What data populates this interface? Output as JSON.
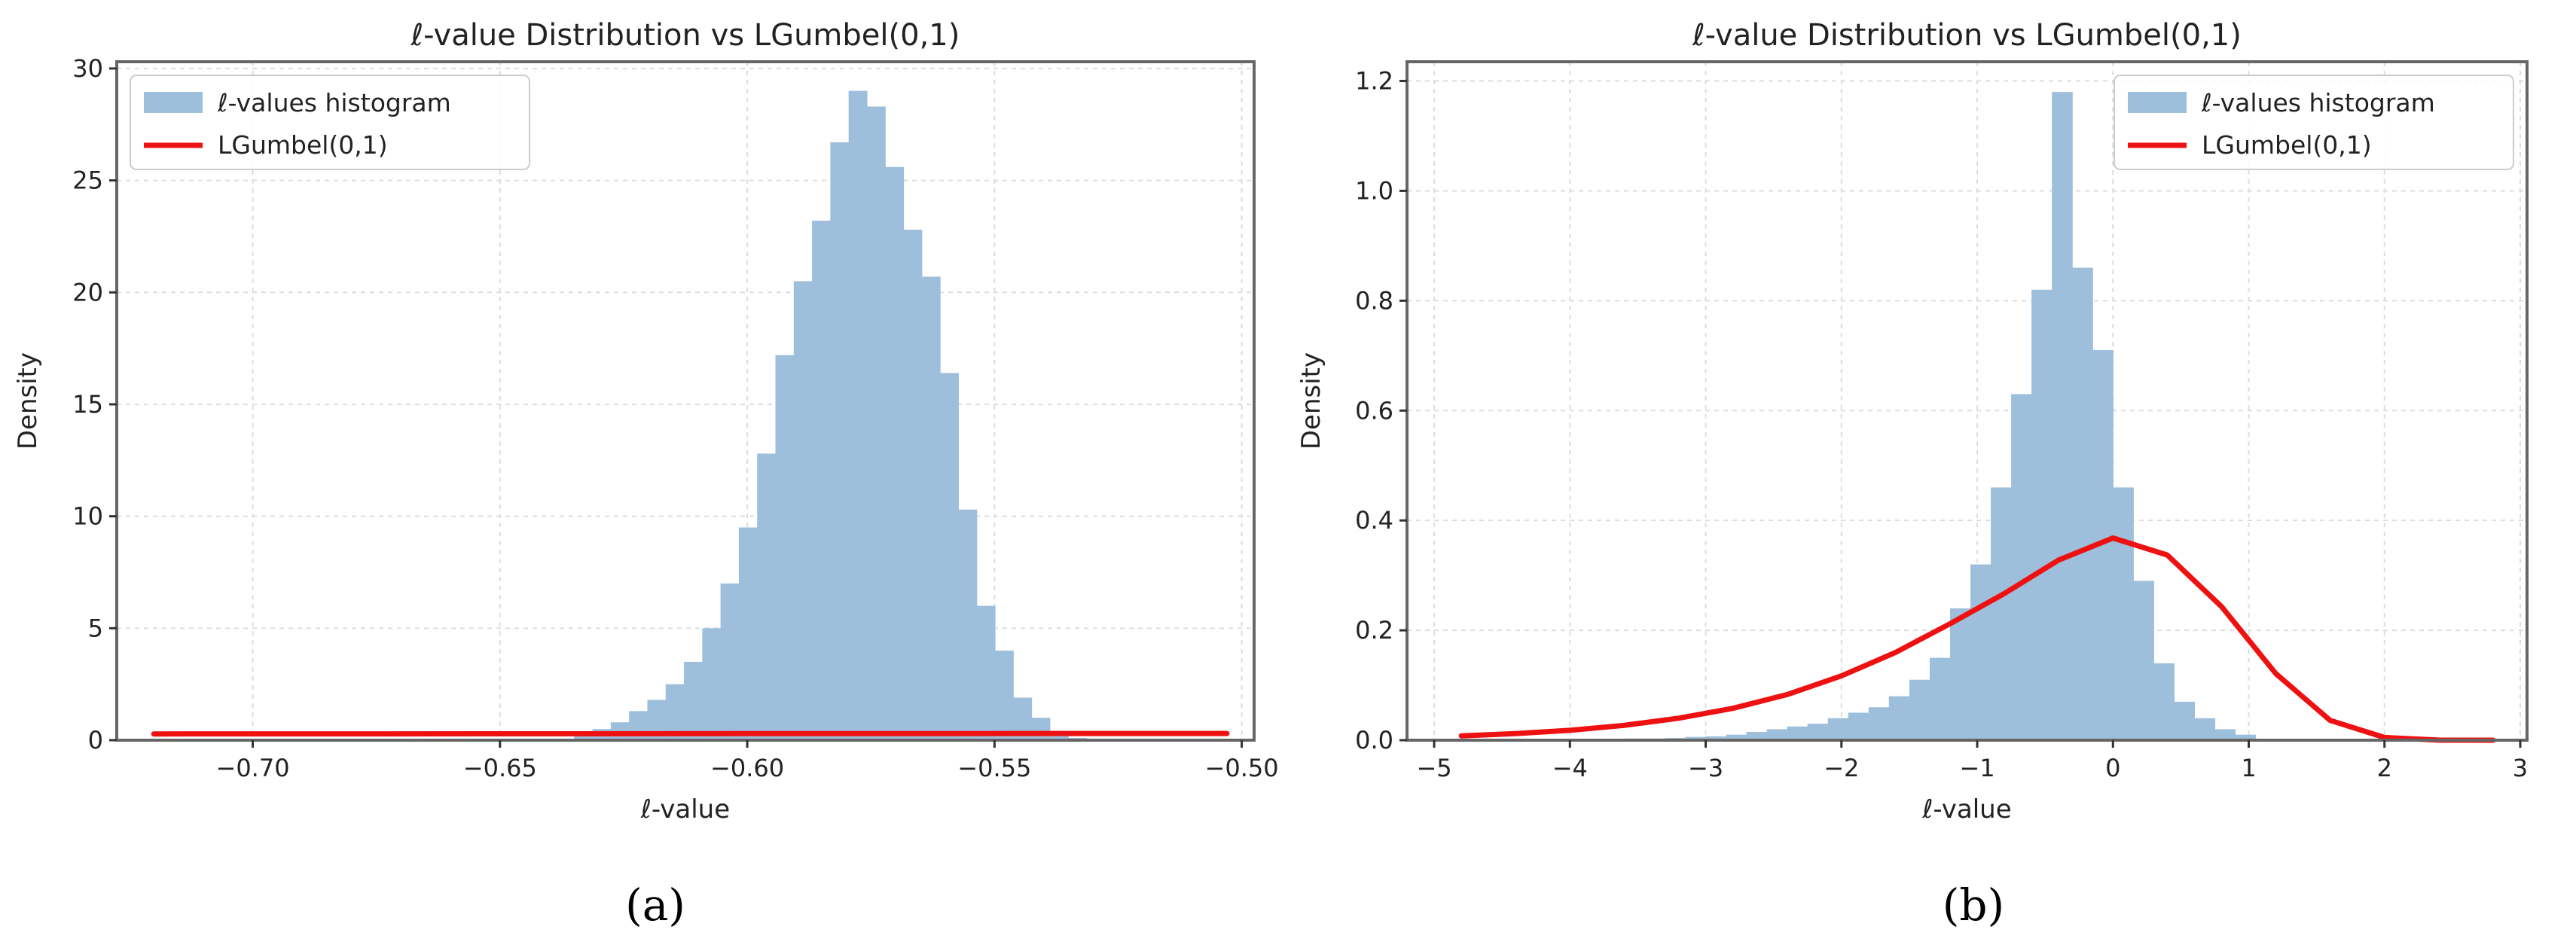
{
  "colors": {
    "hist": "#9ebfdb",
    "curve": "#ee1111",
    "frame": "#666666",
    "grid": "#dddddd"
  },
  "chart_data": [
    {
      "type": "histogram+line",
      "panel_label": "(a)",
      "title": "ℓ-value Distribution vs LGumbel(0,1)",
      "xlabel": "ℓ-value",
      "ylabel": "Density",
      "xlim": [
        -0.7275,
        -0.4975
      ],
      "ylim": [
        0,
        30.3
      ],
      "xticks": [
        -0.7,
        -0.65,
        -0.6,
        -0.55,
        -0.5
      ],
      "xtick_labels": [
        "−0.70",
        "−0.65",
        "−0.60",
        "−0.55",
        "−0.50"
      ],
      "yticks": [
        0,
        5,
        10,
        15,
        20,
        25,
        30
      ],
      "ytick_labels": [
        "0",
        "5",
        "10",
        "15",
        "20",
        "25",
        "30"
      ],
      "grid": true,
      "legend_position": "top-left",
      "series": [
        {
          "name": "ℓ-values histogram",
          "type": "histogram",
          "bin_edges": [
            -0.635,
            -0.6313,
            -0.6276,
            -0.6239,
            -0.6202,
            -0.6165,
            -0.6128,
            -0.6091,
            -0.6054,
            -0.6017,
            -0.598,
            -0.5943,
            -0.5906,
            -0.5869,
            -0.5832,
            -0.5795,
            -0.5758,
            -0.5721,
            -0.5684,
            -0.5647,
            -0.561,
            -0.5573,
            -0.5536,
            -0.5499,
            -0.5462,
            -0.5425,
            -0.5388,
            -0.5351,
            -0.5314
          ],
          "values": [
            0.2,
            0.5,
            0.8,
            1.3,
            1.8,
            2.5,
            3.5,
            5.0,
            7.0,
            9.5,
            12.8,
            17.2,
            20.5,
            23.2,
            26.7,
            29.0,
            28.3,
            25.6,
            22.8,
            20.7,
            16.4,
            10.3,
            6.0,
            4.0,
            1.9,
            1.0,
            0.3,
            0.1
          ]
        },
        {
          "name": "LGumbel(0,1)",
          "type": "line",
          "x": [
            -0.72,
            -0.68,
            -0.64,
            -0.6,
            -0.56,
            -0.52,
            -0.503
          ],
          "y": [
            0.279,
            0.283,
            0.287,
            0.291,
            0.295,
            0.298,
            0.3
          ]
        }
      ]
    },
    {
      "type": "histogram+line",
      "panel_label": "(b)",
      "title": "ℓ-value Distribution vs LGumbel(0,1)",
      "xlabel": "ℓ-value",
      "ylabel": "Density",
      "xlim": [
        -5.2,
        3.05
      ],
      "ylim": [
        0,
        1.235
      ],
      "xticks": [
        -5,
        -4,
        -3,
        -2,
        -1,
        0,
        1,
        2,
        3
      ],
      "xtick_labels": [
        "−5",
        "−4",
        "−3",
        "−2",
        "−1",
        "0",
        "1",
        "2",
        "3"
      ],
      "yticks": [
        0.0,
        0.2,
        0.4,
        0.6,
        0.8,
        1.0,
        1.2
      ],
      "ytick_labels": [
        "0.0",
        "0.2",
        "0.4",
        "0.6",
        "0.8",
        "1.0",
        "1.2"
      ],
      "grid": true,
      "legend_position": "top-right",
      "series": [
        {
          "name": "ℓ-values histogram",
          "type": "histogram",
          "bin_edges": [
            -4.8,
            -4.65,
            -4.5,
            -4.35,
            -4.2,
            -4.05,
            -3.9,
            -3.75,
            -3.6,
            -3.45,
            -3.3,
            -3.15,
            -3.0,
            -2.85,
            -2.7,
            -2.55,
            -2.4,
            -2.25,
            -2.1,
            -1.95,
            -1.8,
            -1.65,
            -1.5,
            -1.35,
            -1.2,
            -1.05,
            -0.9,
            -0.75,
            -0.6,
            -0.45,
            -0.3,
            -0.15,
            0.0,
            0.15,
            0.3,
            0.45,
            0.6,
            0.75,
            0.9,
            1.05
          ],
          "values": [
            0.001,
            0.001,
            0.001,
            0.001,
            0.001,
            0.002,
            0.002,
            0.002,
            0.003,
            0.003,
            0.004,
            0.006,
            0.007,
            0.01,
            0.015,
            0.02,
            0.025,
            0.03,
            0.04,
            0.05,
            0.06,
            0.08,
            0.11,
            0.15,
            0.24,
            0.32,
            0.46,
            0.63,
            0.82,
            1.18,
            0.86,
            0.71,
            0.46,
            0.29,
            0.14,
            0.07,
            0.04,
            0.02,
            0.01
          ]
        },
        {
          "name": "LGumbel(0,1)",
          "type": "line",
          "x": [
            -4.8,
            -4.4,
            -4.0,
            -3.6,
            -3.2,
            -2.8,
            -2.4,
            -2.0,
            -1.6,
            -1.2,
            -0.8,
            -0.4,
            0.0,
            0.4,
            0.8,
            1.2,
            1.6,
            2.0,
            2.4,
            2.8
          ],
          "y": [
            0.008,
            0.012,
            0.018,
            0.027,
            0.04,
            0.058,
            0.083,
            0.117,
            0.16,
            0.212,
            0.267,
            0.328,
            0.368,
            0.337,
            0.243,
            0.121,
            0.036,
            0.005,
            0.0002,
            0.0
          ]
        }
      ]
    }
  ]
}
